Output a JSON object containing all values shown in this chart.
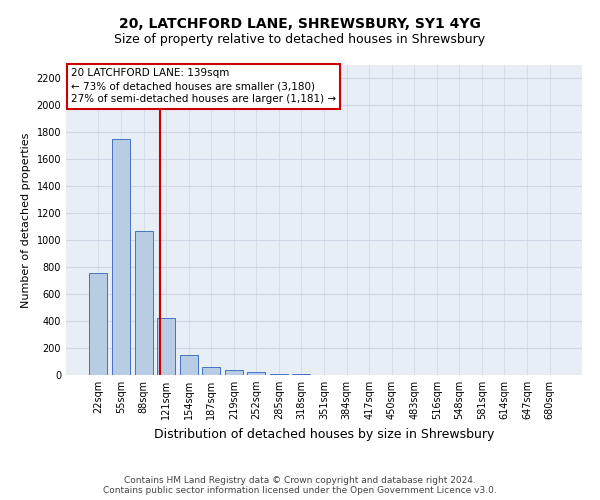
{
  "title": "20, LATCHFORD LANE, SHREWSBURY, SY1 4YG",
  "subtitle": "Size of property relative to detached houses in Shrewsbury",
  "xlabel": "Distribution of detached houses by size in Shrewsbury",
  "ylabel": "Number of detached properties",
  "footer_line1": "Contains HM Land Registry data © Crown copyright and database right 2024.",
  "footer_line2": "Contains public sector information licensed under the Open Government Licence v3.0.",
  "bar_labels": [
    "22sqm",
    "55sqm",
    "88sqm",
    "121sqm",
    "154sqm",
    "187sqm",
    "219sqm",
    "252sqm",
    "285sqm",
    "318sqm",
    "351sqm",
    "384sqm",
    "417sqm",
    "450sqm",
    "483sqm",
    "516sqm",
    "548sqm",
    "581sqm",
    "614sqm",
    "647sqm",
    "680sqm"
  ],
  "bar_values": [
    760,
    1750,
    1070,
    420,
    150,
    60,
    40,
    20,
    10,
    5,
    3,
    2,
    1,
    0,
    0,
    0,
    0,
    0,
    0,
    0,
    0
  ],
  "bar_color": "#b8cce4",
  "bar_edge_color": "#4472c4",
  "bar_linewidth": 0.7,
  "vline_x": 2.73,
  "vline_color": "#cc0000",
  "vline_linewidth": 1.5,
  "ylim": [
    0,
    2300
  ],
  "yticks": [
    0,
    200,
    400,
    600,
    800,
    1000,
    1200,
    1400,
    1600,
    1800,
    2000,
    2200
  ],
  "annotation_text": "20 LATCHFORD LANE: 139sqm\n← 73% of detached houses are smaller (3,180)\n27% of semi-detached houses are larger (1,181) →",
  "annotation_box_color": "#cc0000",
  "grid_color": "#d0d8e8",
  "background_color": "#e8eef5",
  "title_fontsize": 10,
  "subtitle_fontsize": 9,
  "xlabel_fontsize": 9,
  "ylabel_fontsize": 8,
  "tick_fontsize": 7,
  "annotation_fontsize": 7.5,
  "footer_fontsize": 6.5
}
